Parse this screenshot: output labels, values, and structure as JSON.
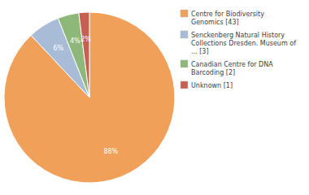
{
  "chart_data": {
    "type": "pie",
    "categories": [
      "Centre for Biodiversity\nGenomics [43]",
      "Senckenberg Natural History\nCollections Dresden. Museum of\n... [3]",
      "Canadian Centre for DNA\nBarcoding [2]",
      "Unknown [1]"
    ],
    "values": [
      88,
      6,
      4,
      2
    ],
    "value_labels": [
      "88%",
      "6%",
      "4%",
      "2%"
    ],
    "data_labels": true,
    "colors": [
      "#f0a058",
      "#a8bcd8",
      "#8db87a",
      "#c86050"
    ],
    "legend": "right"
  }
}
